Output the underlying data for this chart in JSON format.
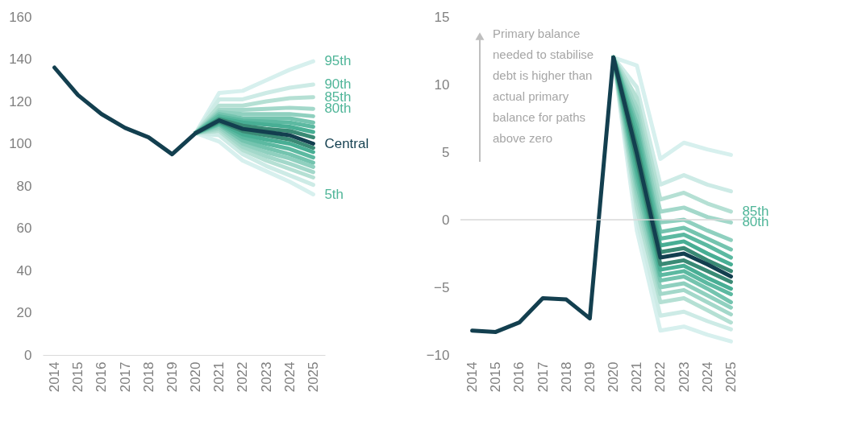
{
  "chart_data": [
    {
      "type": "line",
      "categories": [
        "2014",
        "2015",
        "2016",
        "2017",
        "2018",
        "2019",
        "2020",
        "2021",
        "2022",
        "2023",
        "2024",
        "2025"
      ],
      "ylim": [
        0,
        160
      ],
      "yticks": [
        0,
        20,
        40,
        60,
        80,
        100,
        120,
        140,
        160
      ],
      "grid": false,
      "line_style": "solid",
      "marker": "none",
      "series": [
        {
          "name": "95th",
          "color": "#d7f0ee",
          "values": [
            null,
            null,
            null,
            null,
            null,
            null,
            105,
            124,
            125,
            130,
            135,
            139
          ]
        },
        {
          "name": "5th",
          "color": "#d7f0ee",
          "values": [
            null,
            null,
            null,
            null,
            null,
            null,
            105,
            101,
            92,
            87,
            82,
            76
          ]
        },
        {
          "name": "90th",
          "color": "#cdebe6",
          "values": [
            null,
            null,
            null,
            null,
            null,
            null,
            105,
            121,
            121,
            124,
            126.5,
            128
          ]
        },
        {
          "color": "#cdebe6",
          "values": [
            null,
            null,
            null,
            null,
            null,
            null,
            105,
            104,
            95,
            89.5,
            85,
            80.5
          ]
        },
        {
          "name": "85th",
          "color": "#b5e0d4",
          "values": [
            null,
            null,
            null,
            null,
            null,
            null,
            105,
            118,
            118,
            120,
            121.5,
            122
          ]
        },
        {
          "color": "#b5e0d4",
          "values": [
            null,
            null,
            null,
            null,
            null,
            null,
            105,
            106,
            97,
            92,
            88,
            84
          ]
        },
        {
          "name": "80th",
          "color": "#a3d8ca",
          "values": [
            null,
            null,
            null,
            null,
            null,
            null,
            105,
            116,
            116,
            116.5,
            117,
            116.5
          ]
        },
        {
          "color": "#a3d8ca",
          "values": [
            null,
            null,
            null,
            null,
            null,
            null,
            105,
            107,
            98.5,
            94,
            90.5,
            86.5
          ]
        },
        {
          "color": "#8fd0bf",
          "values": [
            null,
            null,
            null,
            null,
            null,
            null,
            105,
            115,
            114,
            114,
            114,
            113
          ]
        },
        {
          "color": "#8fd0bf",
          "values": [
            null,
            null,
            null,
            null,
            null,
            null,
            105,
            108,
            100,
            96,
            93,
            89
          ]
        },
        {
          "color": "#74c4af",
          "values": [
            null,
            null,
            null,
            null,
            null,
            null,
            105,
            114,
            112,
            112,
            112,
            110
          ]
        },
        {
          "color": "#74c4af",
          "values": [
            null,
            null,
            null,
            null,
            null,
            null,
            105,
            109,
            101.5,
            98,
            95,
            91
          ]
        },
        {
          "color": "#5cb9a1",
          "values": [
            null,
            null,
            null,
            null,
            null,
            null,
            105,
            113,
            111,
            110.5,
            110,
            108
          ]
        },
        {
          "color": "#5cb9a1",
          "values": [
            null,
            null,
            null,
            null,
            null,
            null,
            105,
            109.5,
            103,
            100,
            97.5,
            93.5
          ]
        },
        {
          "color": "#48ae94",
          "values": [
            null,
            null,
            null,
            null,
            null,
            null,
            105,
            112,
            110,
            109,
            108,
            105.5
          ]
        },
        {
          "color": "#48ae94",
          "values": [
            null,
            null,
            null,
            null,
            null,
            null,
            105,
            110,
            104.5,
            102,
            100,
            96
          ]
        },
        {
          "color": "#3a8a75",
          "values": [
            null,
            null,
            null,
            null,
            null,
            null,
            105,
            111.5,
            108.5,
            107,
            106,
            103
          ]
        },
        {
          "color": "#3a8a75",
          "values": [
            null,
            null,
            null,
            null,
            null,
            null,
            105,
            110.5,
            106,
            104,
            102,
            98
          ]
        },
        {
          "name": "Central",
          "color": "#133f4f",
          "values": [
            136,
            123,
            114,
            107.5,
            103,
            95,
            105,
            111,
            107,
            105.5,
            104,
            100
          ]
        }
      ]
    },
    {
      "type": "line",
      "categories": [
        "2014",
        "2015",
        "2016",
        "2017",
        "2018",
        "2019",
        "2020",
        "2021",
        "2022",
        "2023",
        "2024",
        "2025"
      ],
      "ylim": [
        -10,
        15
      ],
      "yticks": [
        -10,
        -5,
        0,
        5,
        10,
        15
      ],
      "grid": false,
      "line_style": "solid",
      "marker": "none",
      "ref_lines": [
        {
          "axis": "y",
          "value": 0,
          "color": "#d9d9d9"
        }
      ],
      "annotations": [
        "Primary balance needed to stabilise debt is higher than actual primary balance for paths above zero"
      ],
      "series": [
        {
          "color": "#d7f0ee",
          "values": [
            null,
            null,
            null,
            null,
            null,
            null,
            12,
            11.4,
            4.5,
            5.7,
            5.2,
            4.8
          ]
        },
        {
          "color": "#d7f0ee",
          "values": [
            null,
            null,
            null,
            null,
            null,
            null,
            12,
            -0.8,
            -8.2,
            -7.9,
            -8.5,
            -9.0
          ]
        },
        {
          "color": "#cdebe6",
          "values": [
            null,
            null,
            null,
            null,
            null,
            null,
            12,
            9.8,
            2.6,
            3.3,
            2.6,
            2.1
          ]
        },
        {
          "color": "#cdebe6",
          "values": [
            null,
            null,
            null,
            null,
            null,
            null,
            12,
            0.0,
            -7.1,
            -6.8,
            -7.5,
            -8.1
          ]
        },
        {
          "name": "85th",
          "color": "#b5e0d4",
          "values": [
            null,
            null,
            null,
            null,
            null,
            null,
            12,
            9.0,
            1.5,
            2.0,
            1.2,
            0.6
          ]
        },
        {
          "color": "#b5e0d4",
          "values": [
            null,
            null,
            null,
            null,
            null,
            null,
            12,
            0.8,
            -6.1,
            -5.8,
            -6.7,
            -7.6
          ]
        },
        {
          "name": "80th",
          "color": "#a3d8ca",
          "values": [
            null,
            null,
            null,
            null,
            null,
            null,
            12,
            8.3,
            0.6,
            0.9,
            0.2,
            -0.2
          ]
        },
        {
          "color": "#a3d8ca",
          "values": [
            null,
            null,
            null,
            null,
            null,
            null,
            12,
            1.5,
            -5.5,
            -5.2,
            -6.1,
            -7.0
          ]
        },
        {
          "color": "#8fd0bf",
          "values": [
            null,
            null,
            null,
            null,
            null,
            null,
            12,
            7.7,
            -0.2,
            0.0,
            -0.8,
            -1.5
          ]
        },
        {
          "color": "#8fd0bf",
          "values": [
            null,
            null,
            null,
            null,
            null,
            null,
            12,
            2.1,
            -5.0,
            -4.7,
            -5.6,
            -6.5
          ]
        },
        {
          "color": "#74c4af",
          "values": [
            null,
            null,
            null,
            null,
            null,
            null,
            12,
            7.1,
            -0.9,
            -0.6,
            -1.4,
            -2.2
          ]
        },
        {
          "color": "#74c4af",
          "values": [
            null,
            null,
            null,
            null,
            null,
            null,
            12,
            2.7,
            -4.5,
            -4.2,
            -5.1,
            -6.1
          ]
        },
        {
          "color": "#5cb9a1",
          "values": [
            null,
            null,
            null,
            null,
            null,
            null,
            12,
            6.6,
            -1.4,
            -1.1,
            -1.9,
            -2.8
          ]
        },
        {
          "color": "#5cb9a1",
          "values": [
            null,
            null,
            null,
            null,
            null,
            null,
            12,
            3.3,
            -4.1,
            -3.8,
            -4.7,
            -5.5
          ]
        },
        {
          "color": "#48ae94",
          "values": [
            null,
            null,
            null,
            null,
            null,
            null,
            12,
            6.0,
            -1.9,
            -1.6,
            -2.5,
            -3.3
          ]
        },
        {
          "color": "#48ae94",
          "values": [
            null,
            null,
            null,
            null,
            null,
            null,
            12,
            3.8,
            -3.7,
            -3.4,
            -4.3,
            -5.1
          ]
        },
        {
          "color": "#3a8a75",
          "values": [
            null,
            null,
            null,
            null,
            null,
            null,
            12,
            5.4,
            -2.4,
            -2.1,
            -3.0,
            -3.8
          ]
        },
        {
          "color": "#3a8a75",
          "values": [
            null,
            null,
            null,
            null,
            null,
            null,
            12,
            4.4,
            -3.3,
            -3.0,
            -3.8,
            -4.6
          ]
        },
        {
          "color": "#133f4f",
          "values": [
            -8.2,
            -8.3,
            -7.6,
            -5.8,
            -5.9,
            -7.3,
            12.0,
            4.9,
            -2.8,
            -2.5,
            -3.3,
            -4.2
          ]
        }
      ]
    }
  ]
}
